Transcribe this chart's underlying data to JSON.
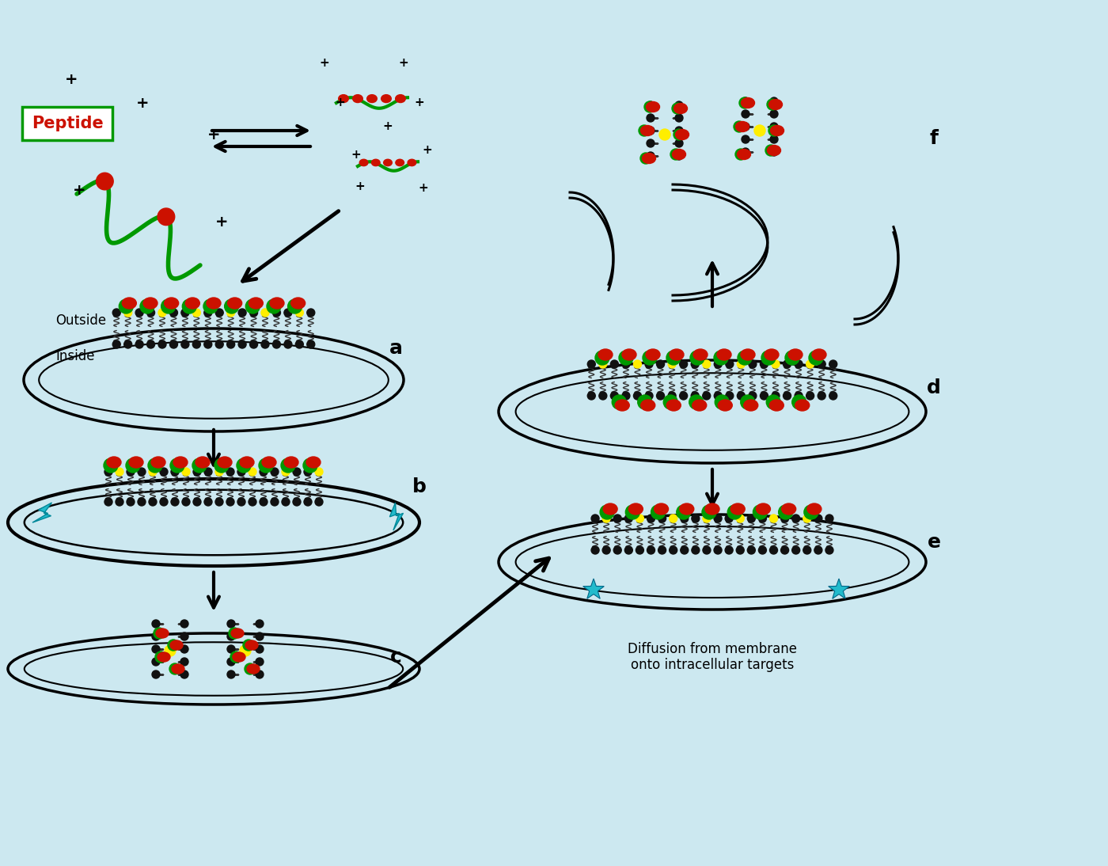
{
  "bg_color": "#cce8f0",
  "peptide_label": "Peptide",
  "outside_label": "Outside",
  "inside_label": "Inside",
  "diffusion_text": "Diffusion from membrane\nonto intracellular targets",
  "green_color": "#009900",
  "red_color": "#cc1100",
  "yellow_color": "#ffee00",
  "black_color": "#111111",
  "teal_color": "#22bbcc",
  "dark_gray": "#333333",
  "label_a": "a",
  "label_b": "b",
  "label_c": "c",
  "label_d": "d",
  "label_e": "e",
  "label_f": "f"
}
